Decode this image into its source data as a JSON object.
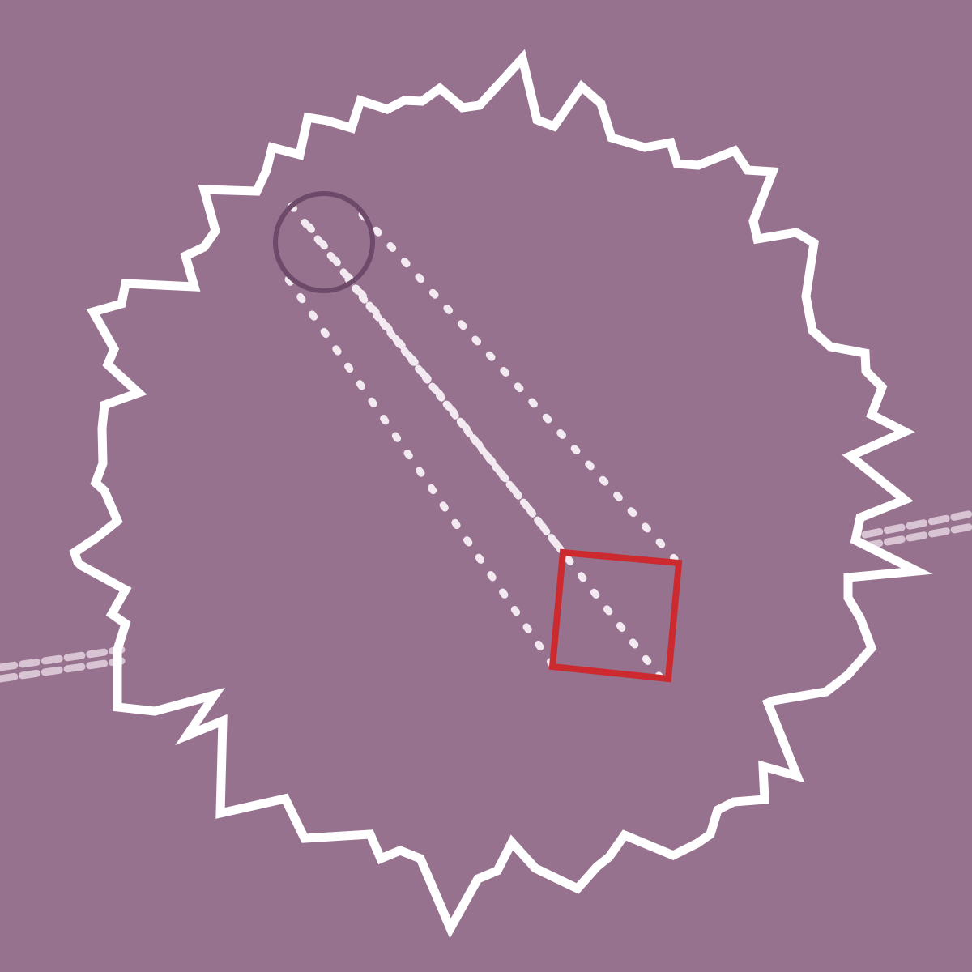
{
  "scene": {
    "colors": {
      "background": "#96728f",
      "boundary": "#ffffff",
      "guide_lines": "#f3e9f1",
      "track": "#d9c4d4",
      "start_marker": "#6e4a6a",
      "target_marker": "#cc2a2e"
    },
    "elements": {
      "boundary": "jagged-starburst-outline",
      "start": "circle-marker",
      "target": "square-marker",
      "guides": "dotted-projection-lines",
      "track": "dashed-double-track"
    }
  }
}
